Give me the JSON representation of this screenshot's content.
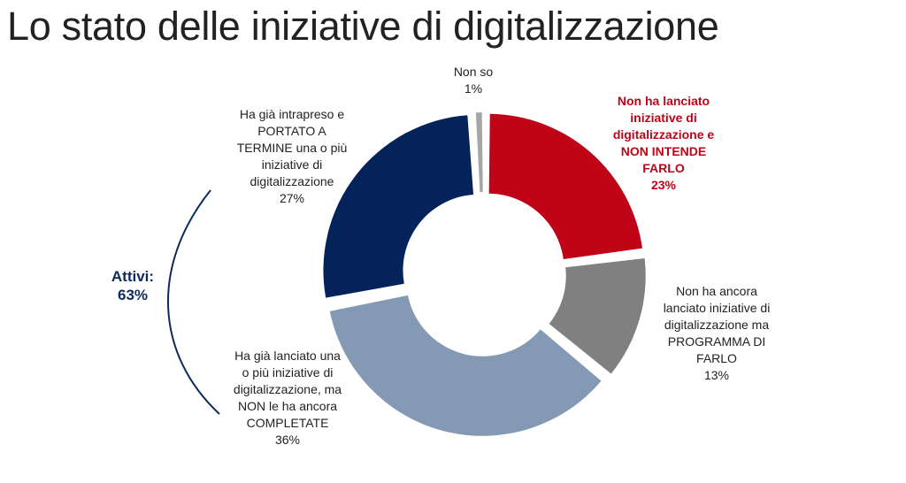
{
  "title": "Lo stato delle iniziative di digitalizzazione",
  "chart_data": {
    "type": "pie",
    "donut": true,
    "categories": [
      "Non ha lanciato iniziative di digitalizzazione e NON INTENDE FARLO",
      "Non ha ancora lanciato iniziative di digitalizzazione ma PROGRAMMA DI FARLO",
      "Ha già lanciato una o più iniziative di digitalizzazione, ma NON le ha ancora COMPLETATE",
      "Ha già intrapreso e PORTATO A TERMINE una o più iniziative di digitalizzazione",
      "Non so"
    ],
    "values": [
      23,
      13,
      36,
      27,
      1
    ],
    "colors": [
      "#c00418",
      "#808080",
      "#8499b4",
      "#03235a",
      "#a6a6a6"
    ],
    "labels": [
      {
        "text": "Non ha lanciato\niniziative di\ndigitalizzazione e\nNON INTENDE\nFARLO",
        "pct": "23%"
      },
      {
        "text": "Non ha ancora\nlanciato iniziative di\ndigitalizzazione ma\nPROGRAMMA DI\nFARLO",
        "pct": "13%"
      },
      {
        "text": "Ha già lanciato una\no più iniziative di\ndigitalizzazione, ma\nNON le ha ancora\nCOMPLETATE",
        "pct": "36%"
      },
      {
        "text": "Ha già intrapreso e\nPORTATO A\nTERMINE una o più\niniziative di\ndigitalizzazione",
        "pct": "27%"
      },
      {
        "text": "Non so",
        "pct": "1%"
      }
    ],
    "annotation": "Attivi:\n63%"
  }
}
